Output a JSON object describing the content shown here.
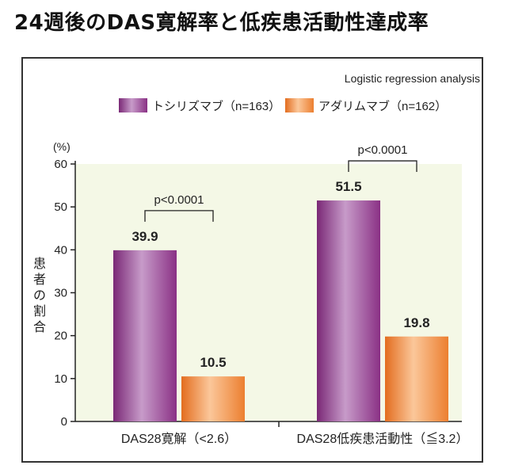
{
  "page": {
    "title": "24週後のDAS寛解率と低疾患活動性達成率"
  },
  "chart_data": {
    "type": "bar",
    "note": "Logistic regression analysis",
    "unit_label": "(%)",
    "ylabel": "患者の割合",
    "ylim": [
      0,
      60
    ],
    "yticks": [
      0,
      10,
      20,
      30,
      40,
      50,
      60
    ],
    "categories": [
      "DAS28寛解（<2.6）",
      "DAS28低疾患活動性（≦3.2）"
    ],
    "series": [
      {
        "name": "トシリズマブ（n=163）",
        "values": [
          39.9,
          51.5
        ],
        "value_labels": [
          "39.9",
          "51.5"
        ],
        "color": "#9b3f93"
      },
      {
        "name": "アダリムマブ（n=162）",
        "values": [
          10.5,
          19.8
        ],
        "value_labels": [
          "10.5",
          "19.8"
        ],
        "color": "#ef8a3c"
      }
    ],
    "comparisons": [
      "p<0.0001",
      "p<0.0001"
    ],
    "plot_background": "#f4f8e6",
    "legend_position": "top"
  }
}
